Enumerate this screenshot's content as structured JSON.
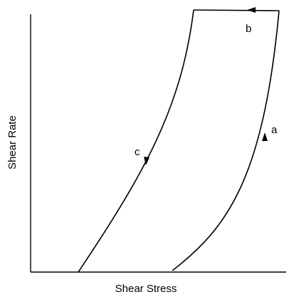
{
  "axes": {
    "x_label": "Shear Stress",
    "y_label": "Shear Rate"
  },
  "labels": [
    {
      "text": "a"
    },
    {
      "text": "b"
    },
    {
      "text": "c"
    }
  ]
}
